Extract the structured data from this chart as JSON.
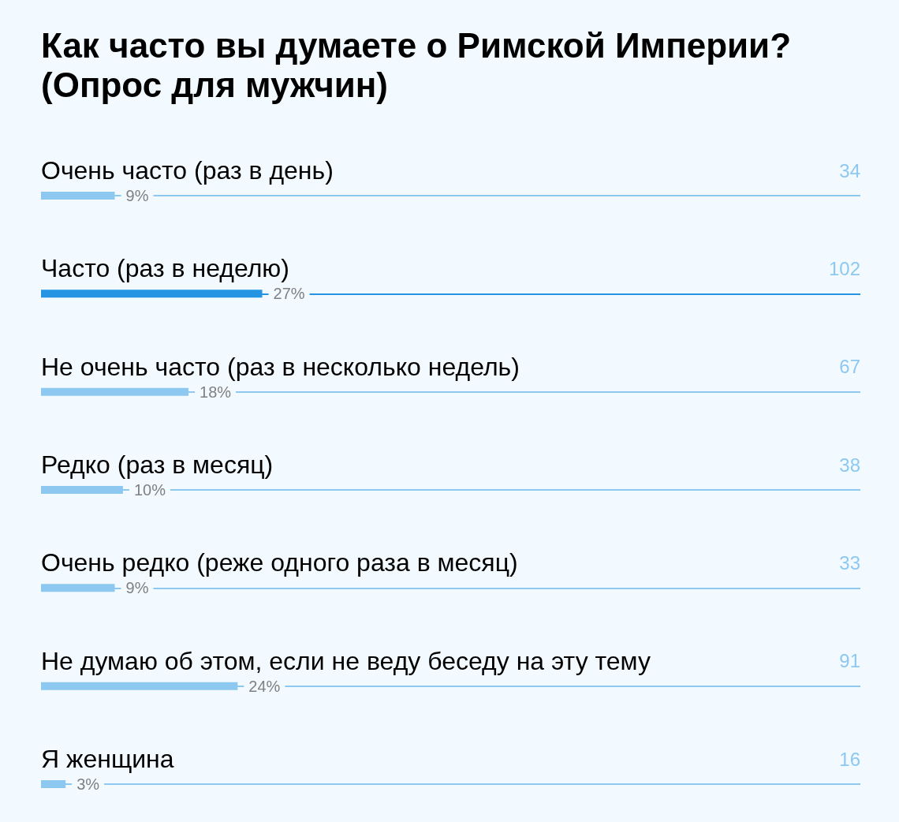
{
  "chart_data": {
    "type": "bar",
    "orientation": "horizontal",
    "title": "Как часто вы думаете о Римской Империи? (Опрос для мужчин)",
    "categories": [
      "Очень часто (раз в день)",
      "Часто (раз в неделю)",
      "Не очень часто (раз в несколько недель)",
      "Редко (раз в месяц)",
      "Очень редко (реже одного раза в месяц)",
      "Не думаю об этом, если не веду беседу на эту тему",
      "Я женщина"
    ],
    "values": [
      9,
      27,
      18,
      10,
      9,
      24,
      3
    ],
    "value_labels": [
      "9%",
      "27%",
      "18%",
      "10%",
      "9%",
      "24%",
      "3%"
    ],
    "colors": [
      "#8dc8f0",
      "#2595e3",
      "#8dc8f0",
      "#8dc8f0",
      "#8dc8f0",
      "#8dc8f0",
      "#8dc8f0"
    ],
    "xlim": [
      0,
      100
    ],
    "tick_labels": "y",
    "ref_lines": [
      {
        "axis": "y",
        "value": "Очень часто (раз в день)",
        "color": "#8dc8f0"
      },
      {
        "axis": "y",
        "value": "Часто (раз в неделю)",
        "color": "#2595e3"
      },
      {
        "axis": "y",
        "value": "Не очень часто (раз в несколько недель)",
        "color": "#8dc8f0"
      },
      {
        "axis": "y",
        "value": "Редко (раз в месяц)",
        "color": "#8dc8f0"
      },
      {
        "axis": "y",
        "value": "Очень редко (реже одного раза в месяц)",
        "color": "#8dc8f0"
      },
      {
        "axis": "y",
        "value": "Не думаю об этом, если не веду беседу на эту тему",
        "color": "#8dc8f0"
      },
      {
        "axis": "y",
        "value": "Я женщина",
        "color": "#8dc8f0"
      }
    ],
    "annotations": [
      "34",
      "102",
      "67",
      "38",
      "33",
      "91",
      "16"
    ]
  }
}
